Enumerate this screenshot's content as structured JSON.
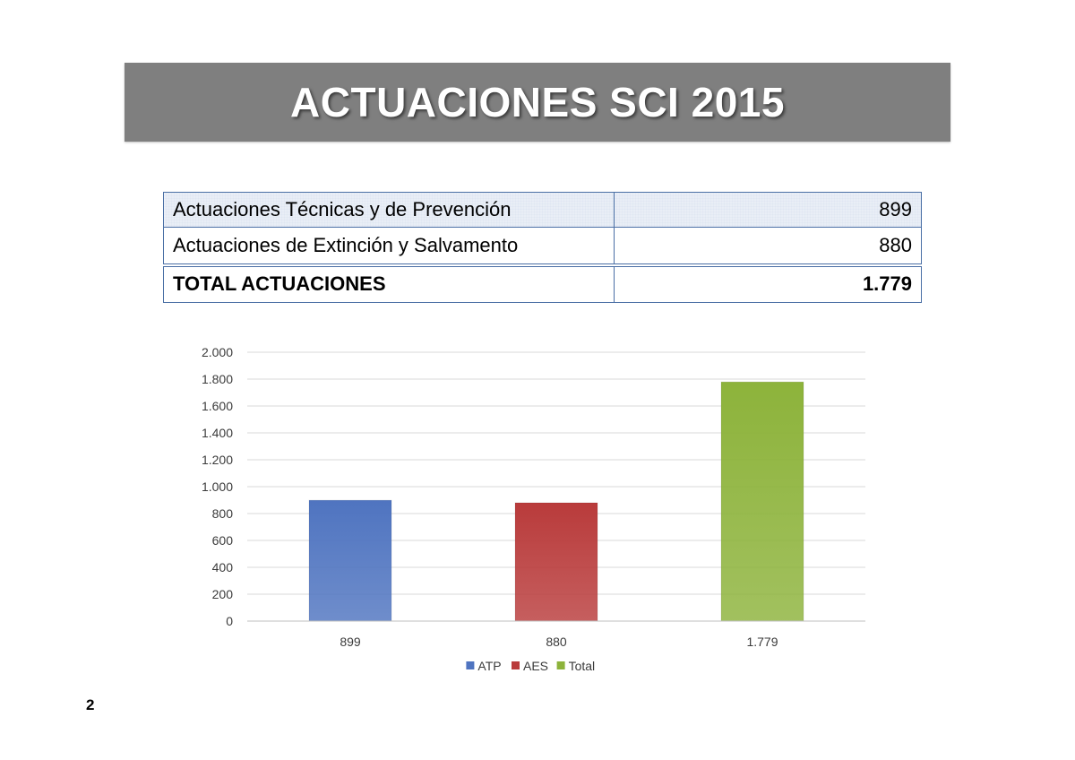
{
  "title": "ACTUACIONES SCI 2015",
  "table": {
    "rows": [
      {
        "label": "Actuaciones  Técnicas y de Prevención",
        "value": "899"
      },
      {
        "label": "Actuaciones de Extinción y Salvamento",
        "value": "880"
      }
    ],
    "total": {
      "label": "TOTAL ACTUACIONES",
      "value": "1.779"
    }
  },
  "chart_data": {
    "type": "bar",
    "categories": [
      "899",
      "880",
      "1.779"
    ],
    "series": [
      {
        "name": "ATP",
        "values": [
          899,
          null,
          null
        ],
        "color": "#4f74c0"
      },
      {
        "name": "AES",
        "values": [
          null,
          880,
          null
        ],
        "color": "#b93b3b"
      },
      {
        "name": "Total",
        "values": [
          null,
          null,
          1779
        ],
        "color": "#8db33b"
      }
    ],
    "ylim": [
      0,
      2000
    ],
    "yticks": [
      0,
      200,
      400,
      600,
      800,
      1000,
      1200,
      1400,
      1600,
      1800,
      2000
    ],
    "ytick_labels": [
      "0",
      "200",
      "400",
      "600",
      "800",
      "1.000",
      "1.200",
      "1.400",
      "1.600",
      "1.800",
      "2.000"
    ],
    "grid": true,
    "legend": "bottom"
  },
  "page_number": "2"
}
